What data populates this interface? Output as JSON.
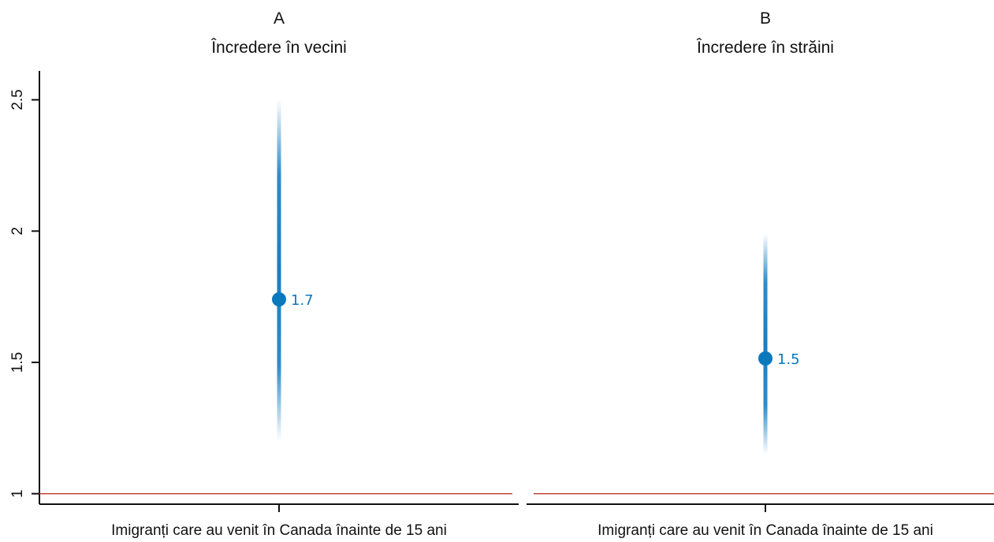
{
  "chart_data": {
    "type": "dot-interval",
    "panels": [
      {
        "letter": "A",
        "title": "Încredere în vecini",
        "category": "Imigranți care au venit în Canada înainte de 15 ani",
        "estimate": 1.74,
        "label": "1.7",
        "interval_low": 1.2,
        "interval_high": 2.5
      },
      {
        "letter": "B",
        "title": "Încredere în străini",
        "category": "Imigranți care au venit în Canada înainte de 15 ani",
        "estimate": 1.515,
        "label": "1.5",
        "interval_low": 1.15,
        "interval_high": 1.99
      }
    ],
    "y_ticks": [
      1,
      1.5,
      2,
      2.5
    ],
    "y_tick_labels": [
      "1",
      "1.5",
      "2",
      "2.5"
    ],
    "ylim": [
      0.96,
      2.61
    ],
    "reference_line": 1,
    "colors": {
      "point": "#0a78bd",
      "interval": "#1a7ec0",
      "reference": "#c0392b",
      "axis": "#111111"
    },
    "grid": false
  }
}
